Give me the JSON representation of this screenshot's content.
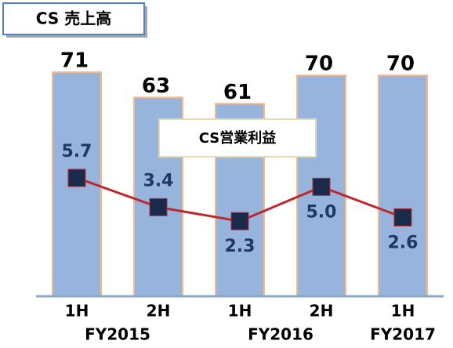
{
  "chart_data": {
    "type": "bar-line",
    "categories": [
      "1H",
      "2H",
      "1H",
      "2H",
      "1H"
    ],
    "groups": [
      {
        "name": "FY2015",
        "categories": [
          0,
          1
        ]
      },
      {
        "name": "FY2016",
        "categories": [
          2,
          3
        ]
      },
      {
        "name": "FY2017",
        "categories": [
          4
        ]
      }
    ],
    "series": [
      {
        "name": "CS 売上高",
        "type": "bar",
        "color": "#97b5dc",
        "values": [
          71,
          63,
          61,
          70,
          70
        ]
      },
      {
        "name": "CS営業利益",
        "type": "line",
        "axis": "y2",
        "color": "#c0272d",
        "values": [
          5.7,
          3.4,
          2.3,
          5,
          2.6
        ],
        "value_labels": [
          "5.7",
          "3.4",
          "2.3",
          "5.0",
          "2.6"
        ]
      }
    ],
    "ylim": [
      0,
      75
    ],
    "y2lim": [
      -3.6,
      15
    ]
  }
}
